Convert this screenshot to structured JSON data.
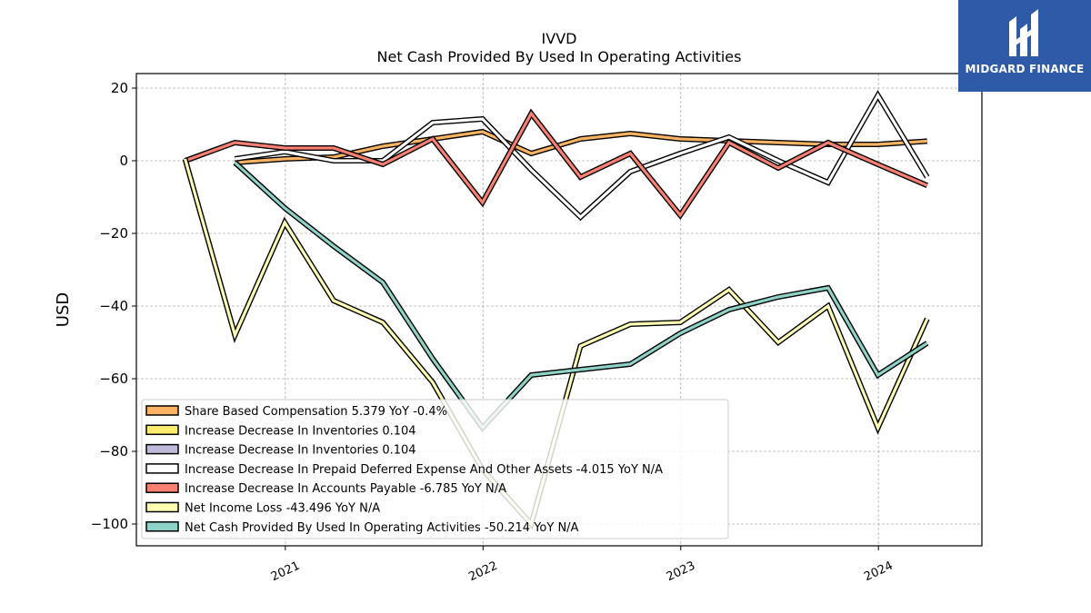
{
  "brand": {
    "logo_name": "midgard-finance-logo",
    "logo_text": "MIDGARD FINANCE",
    "background": "#2f5aa8"
  },
  "chart_data": {
    "type": "line",
    "title": "IVVD",
    "subtitle": "Net Cash Provided By Used In Operating Activities",
    "ylabel": "USD",
    "xlabel": "",
    "ylim": [
      -106,
      24
    ],
    "xlim": [
      "2020-04-01",
      "2024-07-10"
    ],
    "yticks": [
      20,
      0,
      -20,
      -40,
      -60,
      -80,
      -100
    ],
    "ytick_labels": [
      "20",
      "0",
      "−20",
      "−40",
      "−60",
      "−80",
      "−100"
    ],
    "xticks": [
      "2021-01-01",
      "2022-01-01",
      "2023-01-01",
      "2024-01-01"
    ],
    "xtick_labels": [
      "2021",
      "2022",
      "2023",
      "2024"
    ],
    "grid": true,
    "legend_position": "lower-left",
    "series": [
      {
        "name": "Share Based Compensation  5.379 YoY -0.4%",
        "color": "#fdb462",
        "x": [
          "2020-09-30",
          "2020-12-31",
          "2021-03-31",
          "2021-06-30",
          "2021-09-30",
          "2021-12-31",
          "2022-03-31",
          "2022-06-30",
          "2022-09-30",
          "2022-12-31",
          "2023-03-31",
          "2023-06-30",
          "2023-09-30",
          "2023-12-31",
          "2024-03-31"
        ],
        "y": [
          -0.5,
          0.5,
          1.0,
          4.0,
          6.0,
          8.0,
          2.0,
          6.0,
          7.5,
          6.0,
          5.5,
          5.0,
          4.5,
          4.5,
          5.4
        ]
      },
      {
        "name": "Increase Decrease In Inventories  0.104",
        "color": "#ffed6f",
        "x": [],
        "y": []
      },
      {
        "name": "Increase Decrease In Inventories  0.104",
        "color": "#bebada",
        "x": [],
        "y": []
      },
      {
        "name": "Increase Decrease In Prepaid Deferred Expense And Other Assets  -4.015 YoY N/A",
        "color": "#ffffff",
        "x": [
          "2020-09-30",
          "2020-12-31",
          "2021-03-31",
          "2021-06-30",
          "2021-09-30",
          "2021-12-31",
          "2022-03-31",
          "2022-06-30",
          "2022-09-30",
          "2022-12-31",
          "2023-03-31",
          "2023-06-30",
          "2023-09-30",
          "2023-12-31",
          "2024-03-31"
        ],
        "y": [
          0.5,
          2.5,
          0.0,
          0.0,
          10.5,
          11.5,
          -2.5,
          -15.5,
          -3.0,
          2.0,
          6.5,
          0.0,
          -6.0,
          18.0,
          -4.5
        ]
      },
      {
        "name": "Increase Decrease In Accounts Payable  -6.785 YoY N/A",
        "color": "#fb8072",
        "x": [
          "2020-06-30",
          "2020-09-30",
          "2020-12-31",
          "2021-03-31",
          "2021-06-30",
          "2021-09-30",
          "2021-12-31",
          "2022-03-31",
          "2022-06-30",
          "2022-09-30",
          "2022-12-31",
          "2023-03-31",
          "2023-06-30",
          "2023-09-30",
          "2023-12-31",
          "2024-03-31"
        ],
        "y": [
          0.0,
          5.0,
          3.5,
          3.5,
          -1.0,
          6.0,
          -11.5,
          13.0,
          -4.5,
          2.0,
          -15.0,
          5.0,
          -2.0,
          5.0,
          -1.0,
          -6.8
        ]
      },
      {
        "name": "Net Income Loss  -43.496 YoY N/A",
        "color": "#ffffb3",
        "x": [
          "2020-06-30",
          "2020-09-30",
          "2020-12-31",
          "2021-03-31",
          "2021-06-30",
          "2021-09-30",
          "2021-12-31",
          "2022-03-31",
          "2022-06-30",
          "2022-09-30",
          "2022-12-31",
          "2023-03-31",
          "2023-06-30",
          "2023-09-30",
          "2023-12-31",
          "2024-03-31"
        ],
        "y": [
          0.5,
          -48.0,
          -17.0,
          -38.5,
          -44.5,
          -61.0,
          -85.0,
          -100.0,
          -51.0,
          -45.0,
          -44.5,
          -35.5,
          -50.0,
          -40.0,
          -73.5,
          -43.5
        ]
      },
      {
        "name": "Net Cash Provided By Used In Operating Activities  -50.214 YoY N/A",
        "color": "#8dd3c7",
        "x": [
          "2020-09-30",
          "2020-12-31",
          "2021-03-31",
          "2021-06-30",
          "2021-09-30",
          "2021-12-31",
          "2022-03-31",
          "2022-06-30",
          "2022-09-30",
          "2022-12-31",
          "2023-03-31",
          "2023-06-30",
          "2023-09-30",
          "2023-12-31",
          "2024-03-31"
        ],
        "y": [
          -0.5,
          -13.0,
          -23.5,
          -33.5,
          -54.5,
          -73.5,
          -59.0,
          -57.5,
          -56.0,
          -47.5,
          -41.0,
          -37.5,
          -35.0,
          -59.0,
          -50.2
        ]
      }
    ]
  }
}
